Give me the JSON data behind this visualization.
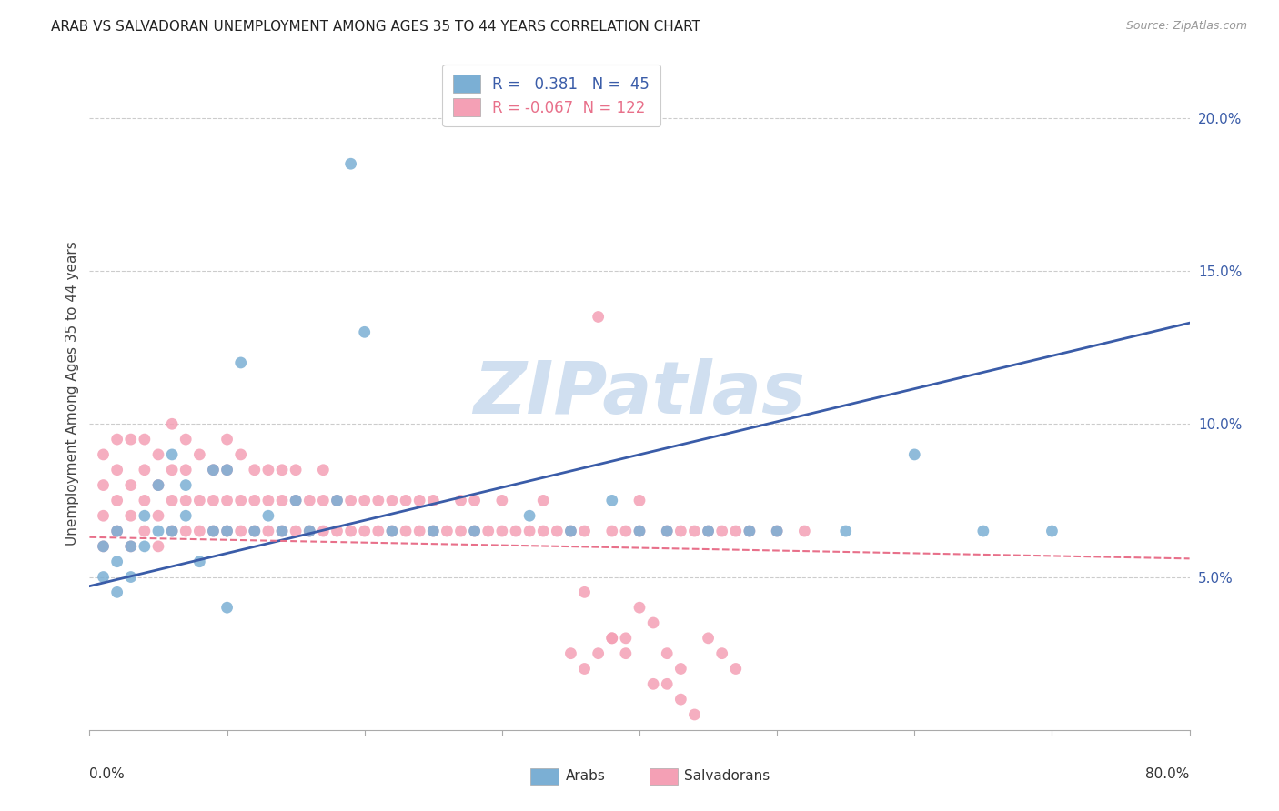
{
  "title": "ARAB VS SALVADORAN UNEMPLOYMENT AMONG AGES 35 TO 44 YEARS CORRELATION CHART",
  "source": "Source: ZipAtlas.com",
  "ylabel": "Unemployment Among Ages 35 to 44 years",
  "y_ticks": [
    0.05,
    0.1,
    0.15,
    0.2
  ],
  "y_tick_labels": [
    "5.0%",
    "10.0%",
    "15.0%",
    "20.0%"
  ],
  "xlim": [
    0.0,
    0.8
  ],
  "ylim": [
    0.0,
    0.22
  ],
  "arab_R": 0.381,
  "arab_N": 45,
  "salvadoran_R": -0.067,
  "salvadoran_N": 122,
  "arab_color": "#7bafd4",
  "salvadoran_color": "#f4a0b5",
  "arab_line_color": "#3a5ca8",
  "salvadoran_line_color": "#e8708a",
  "background_color": "#ffffff",
  "watermark_text": "ZIPatlas",
  "watermark_color": "#d0dff0",
  "grid_color": "#cccccc",
  "arab_line_x": [
    0.0,
    0.8
  ],
  "arab_line_y": [
    0.047,
    0.133
  ],
  "salv_line_x": [
    0.0,
    0.8
  ],
  "salv_line_y": [
    0.063,
    0.056
  ],
  "arab_x": [
    0.01,
    0.01,
    0.02,
    0.02,
    0.02,
    0.03,
    0.03,
    0.04,
    0.04,
    0.05,
    0.05,
    0.06,
    0.06,
    0.07,
    0.07,
    0.08,
    0.09,
    0.09,
    0.1,
    0.1,
    0.11,
    0.12,
    0.13,
    0.14,
    0.15,
    0.16,
    0.18,
    0.19,
    0.2,
    0.22,
    0.25,
    0.28,
    0.32,
    0.35,
    0.38,
    0.4,
    0.42,
    0.45,
    0.48,
    0.5,
    0.55,
    0.6,
    0.65,
    0.7,
    0.1
  ],
  "arab_y": [
    0.06,
    0.05,
    0.055,
    0.045,
    0.065,
    0.06,
    0.05,
    0.07,
    0.06,
    0.065,
    0.08,
    0.09,
    0.065,
    0.08,
    0.07,
    0.055,
    0.085,
    0.065,
    0.085,
    0.065,
    0.12,
    0.065,
    0.07,
    0.065,
    0.075,
    0.065,
    0.075,
    0.185,
    0.13,
    0.065,
    0.065,
    0.065,
    0.07,
    0.065,
    0.075,
    0.065,
    0.065,
    0.065,
    0.065,
    0.065,
    0.065,
    0.09,
    0.065,
    0.065,
    0.04
  ],
  "salv_x": [
    0.01,
    0.01,
    0.01,
    0.01,
    0.02,
    0.02,
    0.02,
    0.02,
    0.03,
    0.03,
    0.03,
    0.03,
    0.04,
    0.04,
    0.04,
    0.04,
    0.05,
    0.05,
    0.05,
    0.05,
    0.06,
    0.06,
    0.06,
    0.06,
    0.07,
    0.07,
    0.07,
    0.07,
    0.08,
    0.08,
    0.08,
    0.09,
    0.09,
    0.09,
    0.1,
    0.1,
    0.1,
    0.1,
    0.11,
    0.11,
    0.11,
    0.12,
    0.12,
    0.12,
    0.13,
    0.13,
    0.13,
    0.14,
    0.14,
    0.14,
    0.15,
    0.15,
    0.15,
    0.16,
    0.16,
    0.17,
    0.17,
    0.17,
    0.18,
    0.18,
    0.19,
    0.19,
    0.2,
    0.2,
    0.21,
    0.21,
    0.22,
    0.22,
    0.23,
    0.23,
    0.24,
    0.24,
    0.25,
    0.25,
    0.26,
    0.27,
    0.27,
    0.28,
    0.28,
    0.29,
    0.3,
    0.3,
    0.31,
    0.32,
    0.33,
    0.33,
    0.34,
    0.35,
    0.36,
    0.37,
    0.38,
    0.39,
    0.4,
    0.4,
    0.42,
    0.43,
    0.44,
    0.45,
    0.46,
    0.47,
    0.48,
    0.5,
    0.52,
    0.36,
    0.4,
    0.41,
    0.42,
    0.43,
    0.38,
    0.39,
    0.41,
    0.43,
    0.44,
    0.45,
    0.46,
    0.47,
    0.42,
    0.38,
    0.35,
    0.36,
    0.37,
    0.39
  ],
  "salv_y": [
    0.06,
    0.07,
    0.08,
    0.09,
    0.065,
    0.075,
    0.085,
    0.095,
    0.06,
    0.07,
    0.08,
    0.095,
    0.065,
    0.075,
    0.085,
    0.095,
    0.06,
    0.07,
    0.08,
    0.09,
    0.065,
    0.075,
    0.085,
    0.1,
    0.065,
    0.075,
    0.085,
    0.095,
    0.065,
    0.075,
    0.09,
    0.065,
    0.075,
    0.085,
    0.065,
    0.075,
    0.085,
    0.095,
    0.065,
    0.075,
    0.09,
    0.065,
    0.075,
    0.085,
    0.065,
    0.075,
    0.085,
    0.065,
    0.075,
    0.085,
    0.065,
    0.075,
    0.085,
    0.065,
    0.075,
    0.065,
    0.075,
    0.085,
    0.065,
    0.075,
    0.065,
    0.075,
    0.065,
    0.075,
    0.065,
    0.075,
    0.065,
    0.075,
    0.065,
    0.075,
    0.065,
    0.075,
    0.065,
    0.075,
    0.065,
    0.065,
    0.075,
    0.065,
    0.075,
    0.065,
    0.065,
    0.075,
    0.065,
    0.065,
    0.065,
    0.075,
    0.065,
    0.065,
    0.065,
    0.135,
    0.065,
    0.065,
    0.065,
    0.075,
    0.065,
    0.065,
    0.065,
    0.065,
    0.065,
    0.065,
    0.065,
    0.065,
    0.065,
    0.045,
    0.04,
    0.035,
    0.025,
    0.02,
    0.03,
    0.025,
    0.015,
    0.01,
    0.005,
    0.03,
    0.025,
    0.02,
    0.015,
    0.03,
    0.025,
    0.02,
    0.025,
    0.03
  ]
}
